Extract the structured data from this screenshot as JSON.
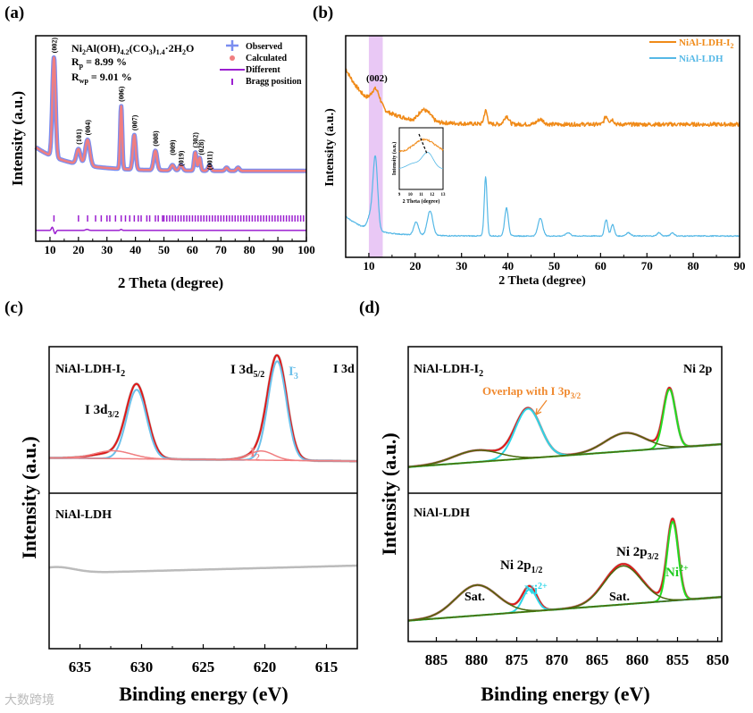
{
  "chart_data": [
    {
      "id": "a",
      "type": "line",
      "panel_label": "(a)",
      "xlabel": "2 Theta (degree)",
      "ylabel": "Intensity (a.u.)",
      "xlim": [
        5,
        100
      ],
      "ylim": [
        -0.55,
        1.35
      ],
      "xticks": [
        10,
        20,
        30,
        40,
        50,
        60,
        70,
        80,
        90,
        100
      ],
      "formula": [
        "Ni",
        "2",
        "Al(OH)",
        "4.2",
        "(CO",
        "3",
        ")",
        "1.4",
        "·2H",
        "2",
        "O"
      ],
      "rp": "R",
      "rp_sub": "p",
      "rp_val": " = 8.99 %",
      "rwp": "R",
      "rwp_sub": "wp",
      "rwp_val": " = 9.01 %",
      "legend": [
        "Observed",
        "Calculated",
        "Different",
        "Bragg position"
      ],
      "legend_position": "top-right",
      "peak_labels": [
        {
          "x": 11.4,
          "text": "(002)"
        },
        {
          "x": 20,
          "text": "(101)"
        },
        {
          "x": 23.2,
          "text": "(004)"
        },
        {
          "x": 35,
          "text": "(006)"
        },
        {
          "x": 39.6,
          "text": "(007)"
        },
        {
          "x": 47,
          "text": "(008)"
        },
        {
          "x": 53,
          "text": "(009)"
        },
        {
          "x": 56,
          "text": "(019)"
        },
        {
          "x": 61,
          "text": "(302)"
        },
        {
          "x": 63,
          "text": "(028)"
        },
        {
          "x": 66,
          "text": "(0011)"
        }
      ],
      "series": [
        {
          "name": "Observed",
          "color": "#7b8ef0",
          "width": 5,
          "background": [
            0.1,
            0.22,
            12
          ],
          "peaks": [
            [
              11.4,
              0.92,
              0.55
            ],
            [
              20,
              0.14,
              0.7
            ],
            [
              23.2,
              0.24,
              0.8
            ],
            [
              35,
              0.58,
              0.35
            ],
            [
              39.6,
              0.32,
              0.5
            ],
            [
              47,
              0.18,
              0.6
            ],
            [
              53,
              0.05,
              0.6
            ],
            [
              56,
              0.05,
              0.6
            ],
            [
              61,
              0.17,
              0.4
            ],
            [
              62.5,
              0.12,
              0.4
            ],
            [
              66,
              0.05,
              0.5
            ],
            [
              72,
              0.03,
              0.5
            ],
            [
              76,
              0.03,
              0.5
            ]
          ]
        },
        {
          "name": "Calculated",
          "color": "#f07e80",
          "width": 2.5,
          "background": [
            0.1,
            0.22,
            12
          ],
          "peaks": [
            [
              11.4,
              0.92,
              0.55
            ],
            [
              20,
              0.14,
              0.7
            ],
            [
              23.2,
              0.24,
              0.8
            ],
            [
              35,
              0.58,
              0.35
            ],
            [
              39.6,
              0.32,
              0.5
            ],
            [
              47,
              0.18,
              0.6
            ],
            [
              53,
              0.05,
              0.6
            ],
            [
              56,
              0.05,
              0.6
            ],
            [
              61,
              0.17,
              0.4
            ],
            [
              62.5,
              0.12,
              0.4
            ],
            [
              66,
              0.05,
              0.5
            ],
            [
              72,
              0.03,
              0.5
            ],
            [
              76,
              0.03,
              0.5
            ]
          ]
        },
        {
          "name": "Different",
          "color": "#9b1fd0",
          "width": 1.5,
          "offset": -0.45,
          "background": [
            0,
            0,
            1
          ],
          "peaks": [
            [
              10.8,
              0.03,
              0.3
            ],
            [
              11.8,
              -0.03,
              0.3
            ],
            [
              23,
              0.01,
              0.5
            ],
            [
              35,
              0.01,
              0.3
            ]
          ]
        }
      ],
      "bragg_positions": [
        11.4,
        20,
        23.2,
        26,
        28,
        30,
        31,
        33,
        35,
        36.5,
        38,
        39.6,
        41,
        42,
        44,
        45,
        47,
        48,
        49.5,
        50,
        51,
        52,
        53,
        54,
        55,
        56,
        57,
        58,
        59,
        60,
        61,
        62,
        63,
        64,
        65,
        66,
        67,
        68,
        69,
        70,
        71,
        72,
        73,
        74,
        75,
        76,
        77,
        78,
        79,
        80,
        81,
        82,
        83,
        84,
        85,
        86,
        87,
        88,
        89,
        90,
        91,
        92,
        93,
        94,
        95,
        96,
        97,
        98,
        99
      ],
      "bragg_color": "#9b1fd0"
    },
    {
      "id": "b",
      "type": "line",
      "panel_label": "(b)",
      "xlabel": "2 Theta (degree)",
      "ylabel": "Intensity (a.u.)",
      "xlim": [
        5,
        90
      ],
      "ylim": [
        -0.05,
        1.3
      ],
      "xticks": [
        10,
        20,
        30,
        40,
        50,
        60,
        70,
        80,
        90
      ],
      "highlight_range": [
        10,
        13
      ],
      "highlight_color": "#e9c8f5",
      "highlight_label": "(002)",
      "legend": [
        "NiAl-LDH-I",
        "2",
        "NiAl-LDH"
      ],
      "legend_position": "top-right",
      "series": [
        {
          "name": "NiAl-LDH-I2",
          "color": "#f08a18",
          "width": 1.5,
          "background": [
            0.76,
            0.34,
            6
          ],
          "noise": 0.012,
          "peaks": [
            [
              11.5,
              0.1,
              0.9
            ],
            [
              21.5,
              0.06,
              0.8
            ],
            [
              23,
              0.04,
              0.8
            ],
            [
              35.2,
              0.08,
              0.35
            ],
            [
              39.7,
              0.05,
              0.5
            ],
            [
              47,
              0.03,
              0.7
            ],
            [
              61.2,
              0.05,
              0.4
            ],
            [
              62.5,
              0.03,
              0.4
            ]
          ]
        },
        {
          "name": "NiAl-LDH",
          "color": "#55b8e6",
          "width": 1.2,
          "background": [
            0.08,
            0.12,
            5
          ],
          "noise": 0.003,
          "peaks": [
            [
              11.4,
              0.44,
              0.5
            ],
            [
              10.3,
              0.08,
              0.6
            ],
            [
              20.2,
              0.08,
              0.5
            ],
            [
              23.2,
              0.15,
              0.6
            ],
            [
              35.2,
              0.36,
              0.3
            ],
            [
              39.7,
              0.17,
              0.4
            ],
            [
              47,
              0.11,
              0.5
            ],
            [
              61.2,
              0.1,
              0.35
            ],
            [
              62.6,
              0.07,
              0.35
            ],
            [
              53,
              0.02,
              0.5
            ],
            [
              66,
              0.02,
              0.5
            ],
            [
              72.6,
              0.02,
              0.4
            ],
            [
              75.5,
              0.02,
              0.4
            ]
          ]
        }
      ],
      "inset": {
        "xlabel": "2 Theta (degree)",
        "ylabel": "Intensity (a.u.)",
        "xlim": [
          9,
          13
        ],
        "xticks": [
          9,
          10,
          11,
          12,
          13
        ]
      }
    },
    {
      "id": "c",
      "type": "line",
      "panel_label": "(c)",
      "xlabel": "Binding energy (eV)",
      "ylabel": "Intensity (a.u.)",
      "xlim": [
        637.5,
        612.5
      ],
      "ylim": [
        0,
        1
      ],
      "xticks": [
        635,
        630,
        625,
        620,
        615
      ],
      "top_label": [
        "NiAl-LDH-I",
        "2"
      ],
      "bottom_label": "NiAl-LDH",
      "region": "I 3d",
      "annotations": {
        "i3d32": [
          "I 3d",
          "3/2"
        ],
        "i3d52": [
          "I 3d",
          "5/2"
        ],
        "i3": [
          "I",
          "3",
          "-"
        ],
        "i2": [
          "I",
          "2"
        ]
      },
      "series": [
        {
          "name": "raw-top",
          "pane": "top",
          "color": "#bbbbbb",
          "width": 3,
          "lin": [
            0.12,
            -0.001
          ],
          "peaks": [
            [
              630.4,
              0.56,
              0.85
            ],
            [
              619,
              0.79,
              0.78
            ],
            [
              632.5,
              0.04,
              1.5
            ],
            [
              620.5,
              0.05,
              1.0
            ]
          ]
        },
        {
          "name": "envelope-top",
          "pane": "top",
          "color": "#e01818",
          "width": 2,
          "lin": [
            0.12,
            -0.001
          ],
          "peaks": [
            [
              630.4,
              0.56,
              0.85
            ],
            [
              619,
              0.79,
              0.78
            ],
            [
              632.5,
              0.04,
              1.5
            ],
            [
              620.5,
              0.05,
              1.0
            ]
          ]
        },
        {
          "name": "I3-",
          "pane": "top",
          "color": "#6cc0ea",
          "width": 2,
          "lin": [
            0.12,
            -0.001
          ],
          "peaks": [
            [
              630.4,
              0.53,
              0.8
            ],
            [
              619,
              0.76,
              0.74
            ]
          ]
        },
        {
          "name": "I2",
          "pane": "top",
          "color": "#f07e80",
          "width": 1.5,
          "lin": [
            0.12,
            -0.001
          ],
          "peaks": [
            [
              632.3,
              0.06,
              1.5
            ],
            [
              620.3,
              0.07,
              1.0
            ]
          ]
        },
        {
          "name": "baseline-top",
          "pane": "top",
          "color": "#f07e80",
          "width": 1.5,
          "lin": [
            0.12,
            -0.001
          ],
          "peaks": []
        },
        {
          "name": "raw-bottom",
          "pane": "bottom",
          "color": "#bbbbbb",
          "width": 2.5,
          "lin": [
            0.3,
            0.0015
          ],
          "peaks": [
            [
              637,
              0.03,
              1.5
            ]
          ]
        }
      ]
    },
    {
      "id": "d",
      "type": "line",
      "panel_label": "(d)",
      "xlabel": "Binding energy (eV)",
      "ylabel": "Intensity (a.u.)",
      "xlim": [
        888.5,
        849.5
      ],
      "ylim": [
        0,
        1
      ],
      "xticks": [
        885,
        880,
        875,
        870,
        865,
        860,
        855,
        850
      ],
      "top_label": [
        "NiAl-LDH-I",
        "2"
      ],
      "bottom_label": "NiAl-LDH",
      "region": "Ni 2p",
      "annotations": {
        "overlap": [
          "Overlap with I 3p",
          "3/2"
        ],
        "ni2p12": [
          "Ni 2p",
          "1/2"
        ],
        "ni2p32": [
          "Ni 2p",
          "3/2"
        ],
        "ni2plus": [
          "Ni",
          "2+"
        ],
        "sat": "Sat."
      },
      "series": [
        {
          "name": "raw-top",
          "pane": "top",
          "color": "#bbbbbb",
          "width": 3,
          "lin": [
            0.05,
            0.0045
          ],
          "peaks": [
            [
              873.6,
              0.38,
              1.6
            ],
            [
              856,
              0.45,
              0.75
            ],
            [
              861.5,
              0.14,
              2.5
            ],
            [
              880,
              0.09,
              2.8
            ]
          ]
        },
        {
          "name": "envelope-top",
          "pane": "top",
          "color": "#e01818",
          "width": 2,
          "lin": [
            0.05,
            0.0045
          ],
          "peaks": [
            [
              873.6,
              0.38,
              1.6
            ],
            [
              856,
              0.45,
              0.75
            ],
            [
              861.5,
              0.14,
              2.5
            ],
            [
              880,
              0.09,
              2.8
            ]
          ]
        },
        {
          "name": "overlap-top",
          "pane": "top",
          "color": "#2ed6e8",
          "width": 2,
          "lin": [
            0.05,
            0.0045
          ],
          "peaks": [
            [
              873.6,
              0.38,
              1.6
            ]
          ]
        },
        {
          "name": "ni2-top",
          "pane": "top",
          "color": "#22dd22",
          "width": 2,
          "lin": [
            0.05,
            0.0045
          ],
          "peaks": [
            [
              856,
              0.45,
              0.75
            ]
          ]
        },
        {
          "name": "sat1-top",
          "pane": "top",
          "color": "#4a6a10",
          "width": 1.5,
          "lin": [
            0.05,
            0.0045
          ],
          "peaks": [
            [
              861.5,
              0.14,
              2.5
            ]
          ]
        },
        {
          "name": "sat2-top",
          "pane": "top",
          "color": "#4a6a10",
          "width": 1.5,
          "lin": [
            0.05,
            0.0045
          ],
          "peaks": [
            [
              880,
              0.09,
              2.8
            ]
          ]
        },
        {
          "name": "raw-bottom",
          "pane": "bottom",
          "color": "#bbbbbb",
          "width": 3,
          "lin": [
            0.05,
            0.003
          ],
          "peaks": [
            [
              873.4,
              0.12,
              0.9
            ],
            [
              855.6,
              0.4,
              0.7
            ],
            [
              861.8,
              0.2,
              2.3
            ],
            [
              880,
              0.15,
              2.6
            ]
          ]
        },
        {
          "name": "envelope-bottom",
          "pane": "bottom",
          "color": "#e01818",
          "width": 2,
          "lin": [
            0.05,
            0.003
          ],
          "peaks": [
            [
              873.4,
              0.12,
              0.9
            ],
            [
              855.6,
              0.4,
              0.7
            ],
            [
              861.8,
              0.2,
              2.3
            ],
            [
              880,
              0.15,
              2.6
            ]
          ]
        },
        {
          "name": "ni2p12-bottom",
          "pane": "bottom",
          "color": "#2ed6e8",
          "width": 2,
          "lin": [
            0.05,
            0.003
          ],
          "peaks": [
            [
              873.4,
              0.11,
              0.85
            ]
          ]
        },
        {
          "name": "ni2p32-bottom",
          "pane": "bottom",
          "color": "#22dd22",
          "width": 2,
          "lin": [
            0.05,
            0.003
          ],
          "peaks": [
            [
              855.6,
              0.39,
              0.68
            ]
          ]
        },
        {
          "name": "sat1-bottom",
          "pane": "bottom",
          "color": "#4a6a10",
          "width": 1.5,
          "lin": [
            0.05,
            0.003
          ],
          "peaks": [
            [
              861.8,
              0.19,
              2.3
            ]
          ]
        },
        {
          "name": "sat2-bottom",
          "pane": "bottom",
          "color": "#4a6a10",
          "width": 1.5,
          "lin": [
            0.05,
            0.003
          ],
          "peaks": [
            [
              880,
              0.15,
              2.6
            ]
          ]
        },
        {
          "name": "baseline-bottom",
          "pane": "bottom",
          "color": "#4a6a10",
          "width": 1.5,
          "lin": [
            0.05,
            0.003
          ],
          "peaks": []
        }
      ]
    }
  ],
  "watermark": "大数跨境"
}
